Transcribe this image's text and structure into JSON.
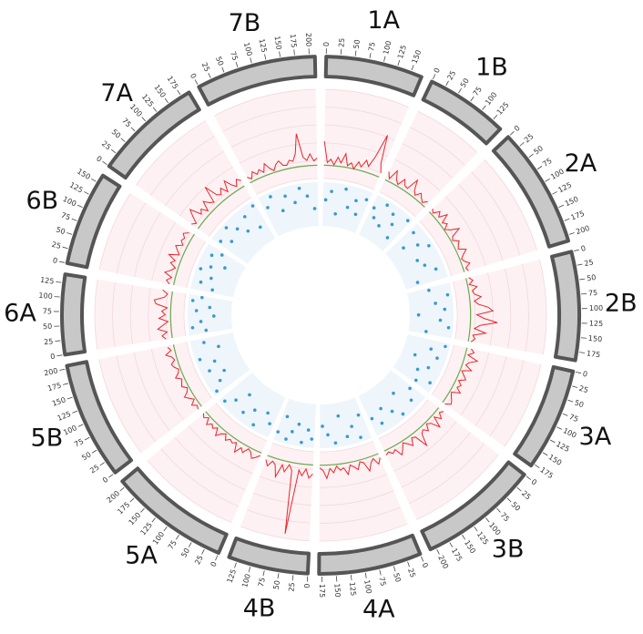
{
  "chart_data": {
    "type": "circos",
    "ideogram_color": "#c8c8c8",
    "ideogram_stroke": "#555555",
    "line_track": {
      "ylim": [
        0,
        100
      ],
      "yticks": [
        0,
        20,
        40,
        60,
        80,
        100
      ],
      "color": "#e8262a",
      "reference": 15,
      "reference_color": "#6aa84f",
      "background": "#fdf1f3"
    },
    "point_track": {
      "ylim": [
        0,
        10
      ],
      "color": "#3a9ac9",
      "background": "#eef5fb"
    },
    "chromosomes": [
      {
        "name": "1A",
        "length": 170,
        "ticks": [
          0,
          25,
          50,
          75,
          100,
          125,
          150
        ],
        "line": {
          "x": [
            0,
            10,
            20,
            30,
            40,
            50,
            60,
            70,
            80,
            90,
            100,
            110,
            120,
            130,
            140,
            150,
            160,
            170
          ],
          "values": [
            42,
            18,
            22,
            16,
            25,
            19,
            30,
            17,
            21,
            15,
            24,
            19,
            28,
            22,
            35,
            62,
            30,
            20
          ]
        },
        "points": {
          "x": [
            10,
            30,
            55,
            80,
            100,
            125,
            140,
            160
          ],
          "values": [
            6,
            8,
            3,
            9,
            5,
            7,
            4,
            8
          ]
        }
      },
      {
        "name": "1B",
        "length": 145,
        "ticks": [
          0,
          25,
          50,
          75,
          100,
          125
        ],
        "line": {
          "x": [
            0,
            10,
            20,
            30,
            40,
            50,
            60,
            70,
            80,
            90,
            100,
            110,
            120,
            130,
            140
          ],
          "values": [
            25,
            18,
            30,
            21,
            17,
            26,
            20,
            19,
            33,
            22,
            18,
            24,
            20,
            17,
            22
          ]
        },
        "points": {
          "x": [
            8,
            25,
            45,
            60,
            80,
            100,
            120,
            135
          ],
          "values": [
            7,
            5,
            9,
            4,
            8,
            6,
            3,
            9
          ]
        }
      },
      {
        "name": "2A",
        "length": 210,
        "ticks": [
          0,
          25,
          50,
          75,
          100,
          125,
          150,
          175,
          200
        ],
        "line": {
          "x": [
            0,
            10,
            20,
            30,
            40,
            50,
            60,
            70,
            80,
            90,
            100,
            110,
            120,
            130,
            140,
            150,
            160,
            170,
            180,
            190,
            200,
            210
          ],
          "values": [
            20,
            17,
            24,
            19,
            28,
            18,
            22,
            16,
            21,
            30,
            19,
            17,
            23,
            20,
            18,
            26,
            21,
            17,
            19,
            24,
            18,
            20
          ]
        },
        "points": {
          "x": [
            15,
            35,
            60,
            85,
            110,
            140,
            170,
            195
          ],
          "values": [
            8,
            4,
            7,
            9,
            5,
            6,
            8,
            3
          ]
        }
      },
      {
        "name": "2B",
        "length": 190,
        "ticks": [
          0,
          25,
          50,
          75,
          100,
          125,
          150,
          175
        ],
        "line": {
          "x": [
            0,
            10,
            20,
            30,
            40,
            50,
            60,
            70,
            80,
            90,
            100,
            110,
            120,
            130,
            140,
            150,
            160,
            170,
            180,
            190
          ],
          "values": [
            18,
            22,
            17,
            25,
            19,
            21,
            28,
            20,
            24,
            35,
            40,
            22,
            30,
            45,
            26,
            20,
            33,
            19,
            22,
            18
          ]
        },
        "points": {
          "x": [
            10,
            40,
            65,
            90,
            110,
            130,
            155,
            180
          ],
          "values": [
            5,
            9,
            6,
            8,
            2,
            7,
            9,
            4
          ]
        }
      },
      {
        "name": "3A",
        "length": 180,
        "ticks": [
          0,
          25,
          50,
          75,
          100,
          125,
          150,
          175
        ],
        "line": {
          "x": [
            0,
            10,
            20,
            30,
            40,
            50,
            60,
            70,
            80,
            90,
            100,
            110,
            120,
            130,
            140,
            150,
            160,
            170,
            180
          ],
          "values": [
            20,
            24,
            18,
            30,
            22,
            19,
            27,
            17,
            21,
            25,
            18,
            23,
            20,
            26,
            17,
            19,
            22,
            24,
            18
          ]
        },
        "points": {
          "x": [
            12,
            35,
            60,
            80,
            105,
            130,
            150,
            170
          ],
          "values": [
            9,
            6,
            8,
            3,
            7,
            5,
            9,
            6
          ]
        }
      },
      {
        "name": "3B",
        "length": 210,
        "ticks": [
          0,
          25,
          50,
          75,
          100,
          125,
          150,
          175,
          200
        ],
        "line": {
          "x": [
            0,
            10,
            20,
            30,
            40,
            50,
            60,
            70,
            80,
            90,
            100,
            110,
            120,
            130,
            140,
            150,
            160,
            170,
            180,
            190,
            200,
            210
          ],
          "values": [
            22,
            19,
            25,
            18,
            30,
            20,
            17,
            24,
            19,
            22,
            35,
            20,
            18,
            26,
            21,
            17,
            23,
            28,
            19,
            22,
            18,
            20
          ]
        },
        "points": {
          "x": [
            10,
            40,
            70,
            95,
            120,
            150,
            175,
            200
          ],
          "values": [
            6,
            8,
            4,
            9,
            7,
            5,
            8,
            6
          ]
        }
      },
      {
        "name": "4A",
        "length": 180,
        "ticks": [
          0,
          25,
          50,
          75,
          100,
          125,
          150,
          175
        ],
        "line": {
          "x": [
            0,
            10,
            20,
            30,
            40,
            50,
            60,
            70,
            80,
            90,
            100,
            110,
            120,
            130,
            140,
            150,
            160,
            170,
            180
          ],
          "values": [
            20,
            26,
            18,
            22,
            30,
            19,
            17,
            25,
            21,
            18,
            28,
            20,
            22,
            17,
            24,
            19,
            30,
            21,
            18
          ]
        },
        "points": {
          "x": [
            15,
            35,
            55,
            80,
            100,
            125,
            150,
            170
          ],
          "values": [
            4,
            9,
            6,
            8,
            3,
            9,
            7,
            5
          ]
        }
      },
      {
        "name": "4B",
        "length": 140,
        "ticks": [
          0,
          25,
          50,
          75,
          100,
          125
        ],
        "line": {
          "x": [
            0,
            10,
            20,
            30,
            40,
            50,
            60,
            70,
            80,
            90,
            100,
            110,
            120,
            130,
            140
          ],
          "values": [
            25,
            30,
            20,
            28,
            22,
            95,
            24,
            18,
            27,
            20,
            35,
            22,
            19,
            26,
            20
          ]
        },
        "points": {
          "x": [
            10,
            25,
            45,
            65,
            85,
            100,
            120,
            135
          ],
          "values": [
            8,
            6,
            9,
            5,
            7,
            9,
            4,
            8
          ]
        }
      },
      {
        "name": "5A",
        "length": 210,
        "ticks": [
          0,
          25,
          50,
          75,
          100,
          125,
          150,
          175,
          200
        ],
        "line": {
          "x": [
            0,
            10,
            20,
            30,
            40,
            50,
            60,
            70,
            80,
            90,
            100,
            110,
            120,
            130,
            140,
            150,
            160,
            170,
            180,
            190,
            200,
            210
          ],
          "values": [
            18,
            22,
            25,
            19,
            17,
            24,
            20,
            28,
            18,
            21,
            19,
            23,
            17,
            20,
            26,
            18,
            22,
            19,
            24,
            17,
            21,
            18
          ]
        },
        "points": {
          "x": [
            15,
            40,
            65,
            90,
            120,
            145,
            170,
            195
          ],
          "values": [
            7,
            5,
            9,
            6,
            8,
            4,
            7,
            9
          ]
        }
      },
      {
        "name": "5B",
        "length": 205,
        "ticks": [
          0,
          25,
          50,
          75,
          100,
          125,
          150,
          175,
          200
        ],
        "line": {
          "x": [
            0,
            10,
            20,
            30,
            40,
            50,
            60,
            70,
            80,
            90,
            100,
            110,
            120,
            130,
            140,
            150,
            160,
            170,
            180,
            190,
            200
          ],
          "values": [
            20,
            18,
            23,
            17,
            21,
            25,
            19,
            17,
            22,
            20,
            18,
            24,
            19,
            17,
            21,
            23,
            18,
            20,
            26,
            19,
            22
          ]
        },
        "points": {
          "x": [
            10,
            35,
            60,
            85,
            110,
            135,
            160,
            190
          ],
          "values": [
            9,
            7,
            5,
            8,
            6,
            9,
            4,
            7
          ]
        }
      },
      {
        "name": "6A",
        "length": 140,
        "ticks": [
          0,
          25,
          50,
          75,
          100,
          125
        ],
        "line": {
          "x": [
            0,
            10,
            20,
            30,
            40,
            50,
            60,
            70,
            80,
            90,
            100,
            110,
            120,
            130,
            140
          ],
          "values": [
            22,
            26,
            20,
            30,
            24,
            18,
            28,
            21,
            25,
            19,
            32,
            34,
            23,
            20,
            26
          ]
        },
        "points": {
          "x": [
            10,
            25,
            45,
            65,
            85,
            100,
            120,
            135
          ],
          "values": [
            6,
            9,
            7,
            4,
            8,
            5,
            9,
            7
          ]
        }
      },
      {
        "name": "6B",
        "length": 165,
        "ticks": [
          0,
          25,
          50,
          75,
          100,
          125,
          150
        ],
        "line": {
          "x": [
            0,
            10,
            20,
            30,
            40,
            50,
            60,
            70,
            80,
            90,
            100,
            110,
            120,
            130,
            140,
            150,
            160
          ],
          "values": [
            20,
            24,
            19,
            28,
            22,
            18,
            25,
            21,
            30,
            19,
            23,
            27,
            20,
            24,
            22,
            26,
            21
          ]
        },
        "points": {
          "x": [
            12,
            30,
            55,
            75,
            95,
            115,
            135,
            155
          ],
          "values": [
            5,
            8,
            6,
            9,
            7,
            4,
            8,
            6
          ]
        }
      },
      {
        "name": "7A",
        "length": 190,
        "ticks": [
          0,
          25,
          50,
          75,
          100,
          125,
          150,
          175
        ],
        "line": {
          "x": [
            0,
            10,
            20,
            30,
            40,
            50,
            60,
            70,
            80,
            90,
            100,
            110,
            120,
            130,
            140,
            150,
            160,
            170,
            180,
            190
          ],
          "values": [
            24,
            20,
            28,
            35,
            22,
            26,
            19,
            30,
            24,
            21,
            40,
            25,
            22,
            28,
            20,
            32,
            24,
            19,
            26,
            22
          ]
        },
        "points": {
          "x": [
            10,
            35,
            60,
            85,
            110,
            135,
            160,
            180
          ],
          "values": [
            8,
            6,
            9,
            7,
            5,
            8,
            4,
            9
          ]
        }
      },
      {
        "name": "7B",
        "length": 210,
        "ticks": [
          0,
          25,
          50,
          75,
          100,
          125,
          150,
          175,
          200
        ],
        "line": {
          "x": [
            0,
            10,
            20,
            30,
            40,
            50,
            60,
            70,
            80,
            90,
            100,
            110,
            120,
            130,
            140,
            150,
            160,
            170,
            180,
            190,
            200,
            210
          ],
          "values": [
            22,
            18,
            25,
            20,
            24,
            19,
            28,
            21,
            17,
            23,
            26,
            20,
            19,
            24,
            22,
            30,
            52,
            25,
            21,
            28,
            20,
            23
          ]
        },
        "points": {
          "x": [
            15,
            40,
            65,
            90,
            120,
            145,
            170,
            195
          ],
          "values": [
            7,
            9,
            5,
            8,
            6,
            9,
            7,
            4
          ]
        }
      }
    ]
  }
}
